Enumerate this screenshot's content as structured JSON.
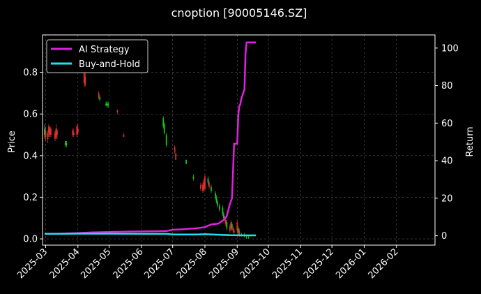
{
  "chart_data": {
    "type": "line",
    "title": "cnoption [90005146.SZ]",
    "ylabel_left": "Price",
    "ylabel_right": "Return",
    "x_ticks": [
      "2025-03",
      "2025-04",
      "2025-05",
      "2025-06",
      "2025-07",
      "2025-08",
      "2025-09",
      "2025-10",
      "2025-11",
      "2025-12",
      "2026-01",
      "2026-02"
    ],
    "y_left_ticks": [
      0.0,
      0.2,
      0.4,
      0.6,
      0.8
    ],
    "y_left_range": [
      -0.03,
      0.98
    ],
    "y_right_ticks": [
      0,
      20,
      40,
      60,
      80,
      100
    ],
    "y_right_range": [
      -5,
      107
    ],
    "x_range": [
      "2025-02-26",
      "2026-03-10"
    ],
    "grid": true,
    "legend": {
      "placement": "top-left",
      "entries": [
        "AI Strategy",
        "Buy-and-Hold"
      ]
    },
    "colors": {
      "up": "#e03030",
      "down": "#20c020",
      "ai": "#e020e0",
      "bh": "#20e0f0",
      "grid": "#555555"
    },
    "series": [
      {
        "name": "AI Strategy",
        "color": "#e020e0",
        "points": [
          [
            "2025-02-28",
            1.0
          ],
          [
            "2025-03-15",
            1.1
          ],
          [
            "2025-04-01",
            1.4
          ],
          [
            "2025-04-15",
            1.8
          ],
          [
            "2025-05-01",
            2.0
          ],
          [
            "2025-05-20",
            2.2
          ],
          [
            "2025-06-15",
            2.4
          ],
          [
            "2025-06-25",
            2.5
          ],
          [
            "2025-07-01",
            3.2
          ],
          [
            "2025-07-10",
            3.4
          ],
          [
            "2025-07-25",
            4.0
          ],
          [
            "2025-08-01",
            4.6
          ],
          [
            "2025-08-07",
            6.0
          ],
          [
            "2025-08-14",
            6.5
          ],
          [
            "2025-08-18",
            8.0
          ],
          [
            "2025-08-20",
            9.0
          ],
          [
            "2025-08-22",
            10.5
          ],
          [
            "2025-08-25",
            17.0
          ],
          [
            "2025-08-27",
            20.0
          ],
          [
            "2025-08-29",
            49.0
          ],
          [
            "2025-09-01",
            49.0
          ],
          [
            "2025-09-02",
            64.0
          ],
          [
            "2025-09-03",
            69.0
          ],
          [
            "2025-09-04",
            70.0
          ],
          [
            "2025-09-05",
            73.0
          ],
          [
            "2025-09-08",
            78.0
          ],
          [
            "2025-09-09",
            97.0
          ],
          [
            "2025-09-10",
            103.0
          ],
          [
            "2025-09-19",
            103.0
          ]
        ]
      },
      {
        "name": "Buy-and-Hold",
        "color": "#20e0f0",
        "points": [
          [
            "2025-02-28",
            1.0
          ],
          [
            "2025-03-15",
            1.0
          ],
          [
            "2025-04-01",
            1.1
          ],
          [
            "2025-05-01",
            1.1
          ],
          [
            "2025-06-01",
            1.0
          ],
          [
            "2025-06-25",
            1.0
          ],
          [
            "2025-07-01",
            0.7
          ],
          [
            "2025-07-25",
            0.7
          ],
          [
            "2025-08-01",
            0.8
          ],
          [
            "2025-08-10",
            0.6
          ],
          [
            "2025-08-25",
            0.3
          ],
          [
            "2025-09-10",
            0.2
          ],
          [
            "2025-09-19",
            0.2
          ]
        ]
      }
    ],
    "candles": [
      [
        "2025-02-28",
        0.5,
        0.53,
        0.48,
        0.55,
        "d"
      ],
      [
        "2025-03-01",
        0.52,
        0.49,
        0.47,
        0.54,
        "u"
      ],
      [
        "2025-03-03",
        0.48,
        0.51,
        0.46,
        0.52,
        "u"
      ],
      [
        "2025-03-04",
        0.51,
        0.54,
        0.49,
        0.55,
        "u"
      ],
      [
        "2025-03-05",
        0.53,
        0.5,
        0.49,
        0.54,
        "u"
      ],
      [
        "2025-03-06",
        0.5,
        0.53,
        0.49,
        0.54,
        "u"
      ],
      [
        "2025-03-10",
        0.51,
        0.48,
        0.47,
        0.52,
        "u"
      ],
      [
        "2025-03-11",
        0.49,
        0.53,
        0.48,
        0.55,
        "u"
      ],
      [
        "2025-03-12",
        0.52,
        0.5,
        0.48,
        0.53,
        "u"
      ],
      [
        "2025-03-20",
        0.45,
        0.47,
        0.44,
        0.47,
        "d"
      ],
      [
        "2025-03-21",
        0.46,
        0.45,
        0.44,
        0.47,
        "d"
      ],
      [
        "2025-03-27",
        0.5,
        0.52,
        0.49,
        0.53,
        "u"
      ],
      [
        "2025-03-28",
        0.51,
        0.5,
        0.49,
        0.53,
        "u"
      ],
      [
        "2025-03-31",
        0.5,
        0.54,
        0.49,
        0.55,
        "u"
      ],
      [
        "2025-04-01",
        0.53,
        0.51,
        0.5,
        0.55,
        "u"
      ],
      [
        "2025-04-07",
        0.8,
        0.75,
        0.73,
        0.83,
        "u"
      ],
      [
        "2025-04-08",
        0.78,
        0.74,
        0.73,
        0.8,
        "u"
      ],
      [
        "2025-04-21",
        0.7,
        0.68,
        0.67,
        0.71,
        "u"
      ],
      [
        "2025-04-22",
        0.68,
        0.67,
        0.66,
        0.69,
        "d"
      ],
      [
        "2025-04-28",
        0.65,
        0.64,
        0.64,
        0.66,
        "d"
      ],
      [
        "2025-04-29",
        0.64,
        0.65,
        0.63,
        0.66,
        "d"
      ],
      [
        "2025-04-30",
        0.65,
        0.64,
        0.63,
        0.66,
        "d"
      ],
      [
        "2025-05-09",
        0.62,
        0.61,
        0.6,
        0.62,
        "u"
      ],
      [
        "2025-05-15",
        0.5,
        0.49,
        0.49,
        0.51,
        "u"
      ],
      [
        "2025-06-22",
        0.58,
        0.54,
        0.53,
        0.59,
        "d"
      ],
      [
        "2025-06-23",
        0.55,
        0.51,
        0.5,
        0.56,
        "d"
      ],
      [
        "2025-06-25",
        0.5,
        0.45,
        0.44,
        0.51,
        "d"
      ],
      [
        "2025-07-03",
        0.44,
        0.42,
        0.41,
        0.45,
        "u"
      ],
      [
        "2025-07-04",
        0.41,
        0.38,
        0.38,
        0.42,
        "u"
      ],
      [
        "2025-07-14",
        0.38,
        0.36,
        0.36,
        0.38,
        "d"
      ],
      [
        "2025-07-21",
        0.3,
        0.29,
        0.28,
        0.31,
        "d"
      ],
      [
        "2025-07-28",
        0.24,
        0.26,
        0.23,
        0.27,
        "u"
      ],
      [
        "2025-07-30",
        0.26,
        0.23,
        0.22,
        0.27,
        "u"
      ],
      [
        "2025-07-31",
        0.24,
        0.28,
        0.23,
        0.29,
        "u"
      ],
      [
        "2025-08-01",
        0.3,
        0.24,
        0.23,
        0.31,
        "u"
      ],
      [
        "2025-08-04",
        0.27,
        0.29,
        0.26,
        0.3,
        "d"
      ],
      [
        "2025-08-05",
        0.27,
        0.25,
        0.24,
        0.28,
        "u"
      ],
      [
        "2025-08-07",
        0.25,
        0.23,
        0.22,
        0.26,
        "d"
      ],
      [
        "2025-08-11",
        0.22,
        0.2,
        0.19,
        0.23,
        "d"
      ],
      [
        "2025-08-12",
        0.2,
        0.18,
        0.17,
        0.21,
        "d"
      ],
      [
        "2025-08-13",
        0.18,
        0.16,
        0.15,
        0.19,
        "d"
      ],
      [
        "2025-08-15",
        0.16,
        0.14,
        0.13,
        0.17,
        "d"
      ],
      [
        "2025-08-18",
        0.15,
        0.12,
        0.11,
        0.16,
        "d"
      ],
      [
        "2025-08-19",
        0.12,
        0.1,
        0.09,
        0.13,
        "d"
      ],
      [
        "2025-08-20",
        0.1,
        0.09,
        0.08,
        0.11,
        "u"
      ],
      [
        "2025-08-21",
        0.09,
        0.07,
        0.06,
        0.1,
        "u"
      ],
      [
        "2025-08-22",
        0.08,
        0.05,
        0.04,
        0.09,
        "d"
      ],
      [
        "2025-08-25",
        0.06,
        0.04,
        0.03,
        0.07,
        "u"
      ],
      [
        "2025-08-26",
        0.05,
        0.08,
        0.04,
        0.09,
        "u"
      ],
      [
        "2025-08-27",
        0.07,
        0.05,
        0.04,
        0.08,
        "d"
      ],
      [
        "2025-08-28",
        0.05,
        0.04,
        0.03,
        0.06,
        "u"
      ],
      [
        "2025-08-29",
        0.04,
        0.03,
        0.02,
        0.05,
        "u"
      ],
      [
        "2025-09-01",
        0.08,
        0.04,
        0.03,
        0.09,
        "u"
      ],
      [
        "2025-09-02",
        0.05,
        0.03,
        0.02,
        0.06,
        "d"
      ],
      [
        "2025-09-03",
        0.04,
        0.02,
        0.01,
        0.05,
        "u"
      ],
      [
        "2025-09-05",
        0.02,
        0.02,
        0.01,
        0.03,
        "d"
      ],
      [
        "2025-09-08",
        0.02,
        0.01,
        0.01,
        0.03,
        "d"
      ],
      [
        "2025-09-10",
        0.01,
        0.01,
        0.0,
        0.02,
        "d"
      ],
      [
        "2025-09-12",
        0.01,
        0.01,
        0.0,
        0.02,
        "d"
      ]
    ]
  }
}
